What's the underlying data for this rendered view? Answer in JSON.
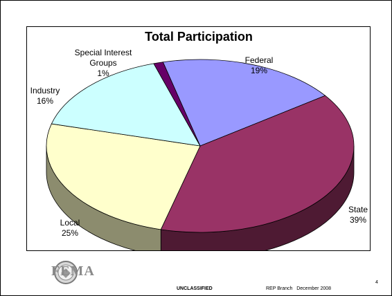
{
  "chart_data": {
    "type": "pie",
    "title": "Total Participation",
    "slices": [
      {
        "name": "Federal",
        "value": 19,
        "label": "19%",
        "color": "#9999FF",
        "side_color": "#6B6BB3"
      },
      {
        "name": "State",
        "value": 39,
        "label": "39%",
        "color": "#993366",
        "side_color": "#4E1A33"
      },
      {
        "name": "Local",
        "value": 25,
        "label": "25%",
        "color": "#FFFFCC",
        "side_color": "#8C8C6E"
      },
      {
        "name": "Industry",
        "value": 16,
        "label": "16%",
        "color": "#CCFFFF",
        "side_color": "#7FA3A3"
      },
      {
        "name": "Special Interest Groups",
        "name_lines": [
          "Special Interest",
          "Groups"
        ],
        "value": 1,
        "label": "1%",
        "color": "#660066",
        "side_color": "#330033"
      }
    ]
  },
  "footer": {
    "logo_text": "FEMA",
    "classification": "UNCLASSIFIED",
    "branch_date": "REP Branch   December 2008",
    "page_number": "4"
  }
}
